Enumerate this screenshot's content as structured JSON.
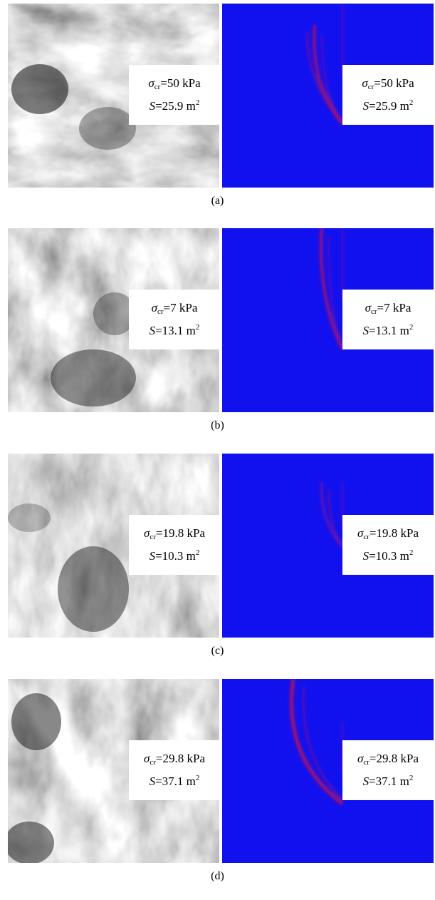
{
  "panels": [
    {
      "caption": "(a)",
      "symbol": "σ",
      "sigma_sub": "cr",
      "sigma_value": "=50 kPa",
      "area_symbol": "S",
      "area_value": "=25.9 m",
      "area_unit_sup": "2"
    },
    {
      "caption": "(b)",
      "symbol": "σ",
      "sigma_sub": "cr",
      "sigma_value": "=7 kPa",
      "area_symbol": "S",
      "area_value": "=13.1 m",
      "area_unit_sup": "2"
    },
    {
      "caption": "(c)",
      "symbol": "σ",
      "sigma_sub": "cr",
      "sigma_value": "=19.8 kPa",
      "area_symbol": "S",
      "area_value": "=10.3 m",
      "area_unit_sup": "2"
    },
    {
      "caption": "(d)",
      "symbol": "σ",
      "sigma_sub": "cr",
      "sigma_value": "=29.8 kPa",
      "area_symbol": "S",
      "area_value": "=37.1 m",
      "area_unit_sup": "2"
    }
  ],
  "colors": {
    "field_blue": "#1111f0",
    "slip_red": "#e0103a",
    "box_white": "#ffffff"
  }
}
